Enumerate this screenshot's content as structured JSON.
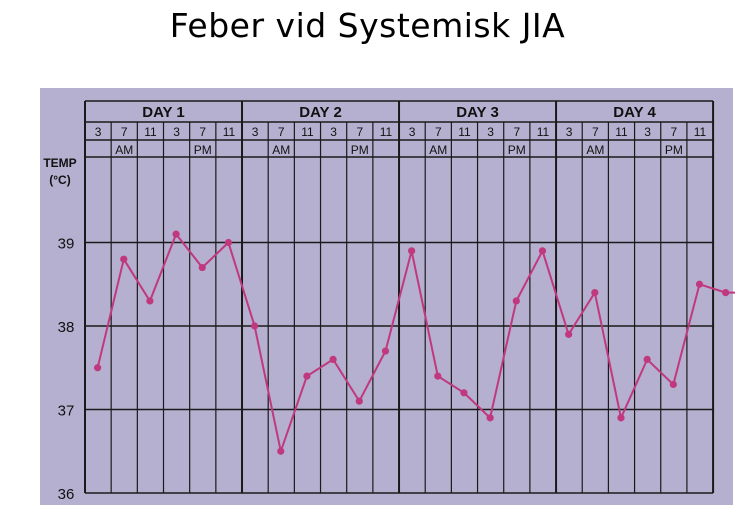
{
  "slide": {
    "title": "Feber vid Systemisk JIA"
  },
  "colors": {
    "background": "#b5b0cf",
    "grid": "#1a1a1a",
    "line": "#c0387e"
  },
  "chart_data": {
    "type": "line",
    "title": "",
    "ylabel_lines": [
      "TEMP",
      "(°C)"
    ],
    "days": [
      "DAY 1",
      "DAY 2",
      "DAY 3",
      "DAY 4"
    ],
    "hours": [
      "3",
      "7",
      "11",
      "3",
      "7",
      "11"
    ],
    "periods": [
      "AM",
      "PM"
    ],
    "y_ticks": [
      39,
      38,
      37,
      36
    ],
    "ylim": [
      36,
      40
    ],
    "series": [
      {
        "values": [
          37.5,
          38.8,
          38.3,
          39.1,
          38.7,
          39.0,
          38.0,
          36.5,
          37.4,
          37.6,
          37.1,
          37.7,
          38.9,
          37.4,
          37.2,
          36.9,
          38.3,
          38.9,
          37.9,
          38.4,
          36.9,
          37.6,
          37.3,
          38.5,
          38.4,
          38.4
        ]
      }
    ]
  }
}
